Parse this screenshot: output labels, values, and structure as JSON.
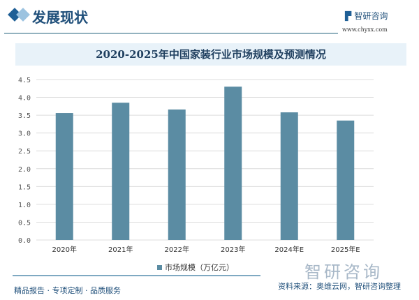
{
  "header": {
    "section_title": "发展现状",
    "logo_text": "智研咨询",
    "logo_url": "www.chyxx.com"
  },
  "chart_data": {
    "type": "bar",
    "title": "2020-2025年中国家装行业市场规模及预测情况",
    "categories": [
      "2020年",
      "2021年",
      "2022年",
      "2023年",
      "2024年E",
      "2025年E"
    ],
    "series": [
      {
        "name": "市场规模（万亿元）",
        "values": [
          3.56,
          3.85,
          3.66,
          4.3,
          3.58,
          3.35
        ],
        "color": "#5b8ca3"
      }
    ],
    "ylim": [
      0,
      4.5
    ],
    "yticks": [
      "0.0",
      "0.5",
      "1.0",
      "1.5",
      "2.0",
      "2.5",
      "3.0",
      "3.5",
      "4.0",
      "4.5"
    ],
    "grid": true,
    "legend": "bottom"
  },
  "footer": {
    "tagline": "精品报告 · 专项定制 · 品质服务",
    "source": "资料来源：奥维云网，智研咨询整理",
    "watermark_logo": "智研咨询"
  }
}
